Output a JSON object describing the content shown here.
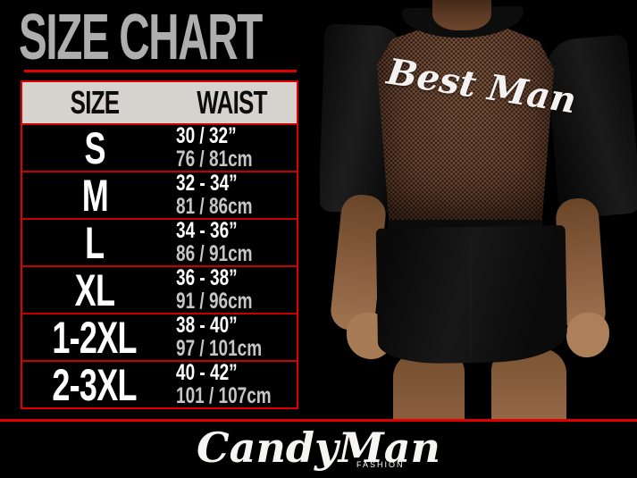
{
  "chart_data": {
    "type": "table",
    "title": "SIZE CHART",
    "columns": [
      "SIZE",
      "WAIST"
    ],
    "rows": [
      [
        "S",
        "30 / 32”",
        "76 / 81cm"
      ],
      [
        "M",
        "32 - 34”",
        "81 / 86cm"
      ],
      [
        "L",
        "34 - 36”",
        "86 / 91cm"
      ],
      [
        "XL",
        "36 - 38”",
        "91 / 96cm"
      ],
      [
        "1-2XL",
        "38 - 40”",
        "97 / 101cm"
      ],
      [
        "2-3XL",
        "40 - 42”",
        "101 / 107cm"
      ]
    ]
  },
  "photo": {
    "garment_back_text": "Best Man"
  },
  "footer": {
    "brand": "CandyMan",
    "sub_brand": "FASHION"
  },
  "colors": {
    "background": "#000000",
    "accent_red": "#e00000",
    "title_gray": "#aeaeae",
    "header_bg": "#d6d3cf",
    "inches_text": "#ffffff",
    "cm_text": "#c6c6c6",
    "mesh_brown": "#6b4531",
    "skin": "#a87c58"
  }
}
